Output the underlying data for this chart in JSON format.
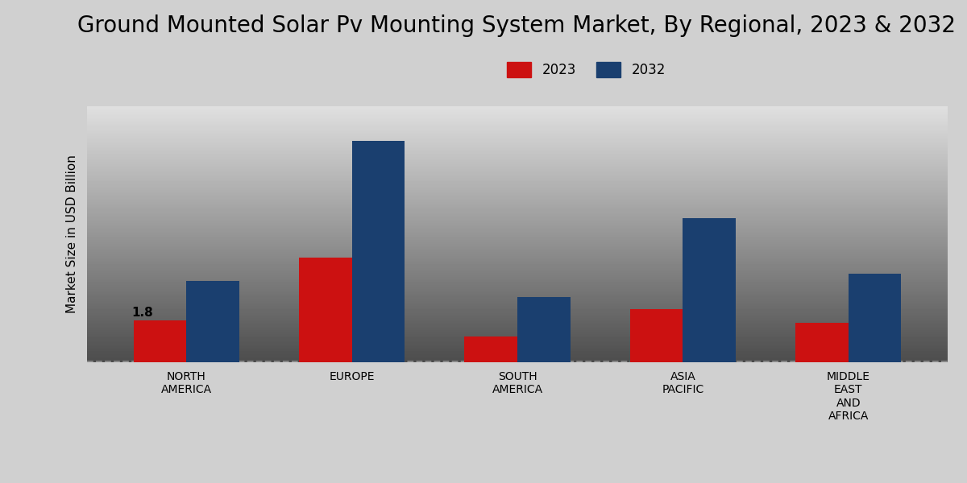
{
  "title": "Ground Mounted Solar Pv Mounting System Market, By Regional, 2023 & 203",
  "title_full": "Ground Mounted Solar Pv Mounting System Market, By Regional, 2023 & 2032",
  "ylabel": "Market Size in USD Billion",
  "categories": [
    "NORTH\nAMERICA",
    "EUROPE",
    "SOUTH\nAMERICA",
    "ASIA\nPACIFIC",
    "MIDDLE\nEAST\nAND\nAFRICA"
  ],
  "values_2023": [
    1.8,
    4.5,
    1.1,
    2.3,
    1.7
  ],
  "values_2032": [
    3.5,
    9.5,
    2.8,
    6.2,
    3.8
  ],
  "color_2023": "#cc1111",
  "color_2032": "#1a3f6f",
  "annotation_text": "1.8",
  "annotation_category_idx": 0,
  "background_color_top": "#d8d8d8",
  "background_color": "#d8d8d8",
  "bar_width": 0.32,
  "legend_labels": [
    "2023",
    "2032"
  ],
  "title_fontsize": 20,
  "label_fontsize": 11,
  "tick_fontsize": 10,
  "ylim": [
    0,
    11
  ],
  "dashed_line_y": 0.05
}
